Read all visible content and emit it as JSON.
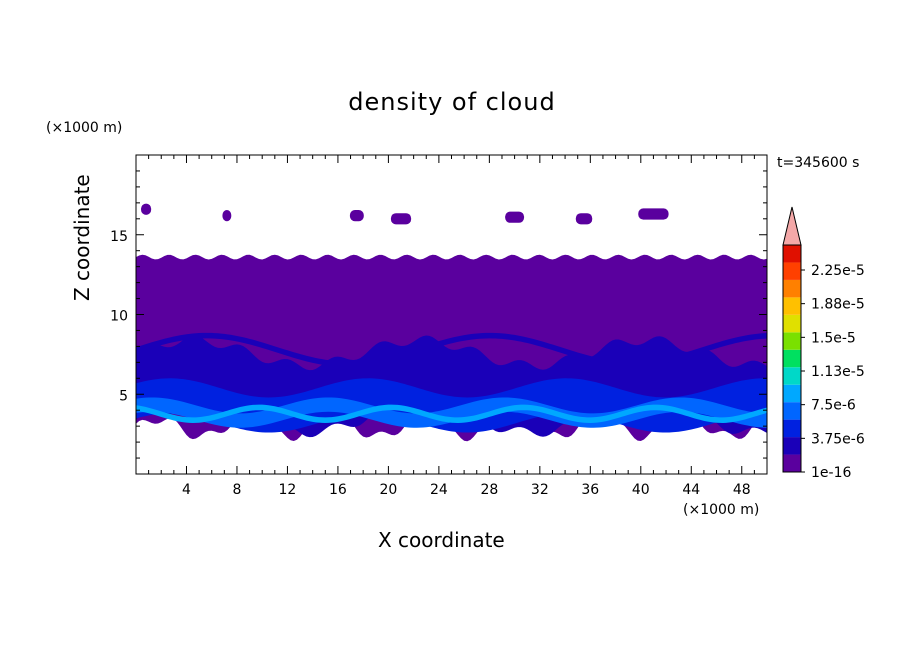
{
  "chart_data": {
    "type": "heatmap",
    "title": "density of cloud",
    "xlabel": "X coordinate",
    "ylabel": "Z coordinate",
    "x_unit": "(×1000 m)",
    "z_unit": "(×1000 m)",
    "time_label": "t=345600 s",
    "xlim": [
      0,
      50
    ],
    "ylim": [
      0,
      20
    ],
    "x_ticks": [
      4,
      8,
      12,
      16,
      20,
      24,
      28,
      32,
      36,
      40,
      44,
      48
    ],
    "y_ticks": [
      5,
      10,
      15
    ],
    "colorbar": {
      "labels": [
        "1e-16",
        "3.75e-6",
        "7.5e-6",
        "1.13e-5",
        "1.5e-5",
        "1.88e-5",
        "2.25e-5"
      ],
      "levels": [
        "#5a009e",
        "#1a00b8",
        "#0021e0",
        "#0066ff",
        "#00a8ff",
        "#00d8c8",
        "#00e060",
        "#7ae000",
        "#e0e000",
        "#ffc000",
        "#ff8000",
        "#ff4000",
        "#e01000"
      ],
      "extend_color": "#f4a8a8"
    },
    "cloud_deck": {
      "top_z": 13.6,
      "base_z_range": [
        2.2,
        3.6
      ],
      "isolated_patches_z": [
        16.3,
        16.7
      ]
    }
  }
}
